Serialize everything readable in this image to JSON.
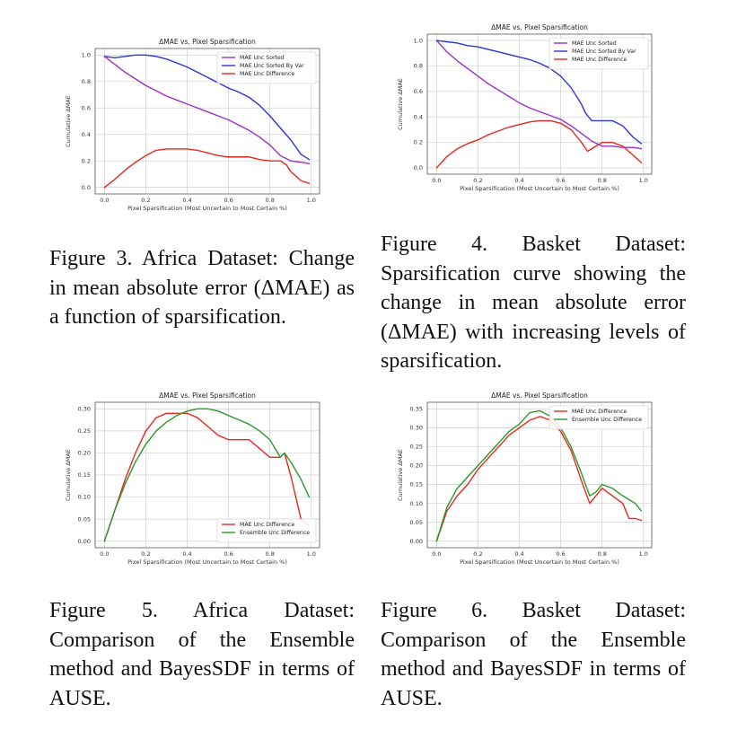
{
  "figures": [
    {
      "id": "fig3",
      "caption": "Figure 3. Africa Dataset: Change in mean absolute error (ΔMAE) as a function of sparsification.",
      "chart_data": {
        "type": "line",
        "title": "ΔMAE vs. Pixel Sparsification",
        "xlabel": "Pixel Sparsification (Most Uncertain to Most Certain %)",
        "ylabel": "Cumulative ΔMAE",
        "xlim": [
          0.0,
          1.0
        ],
        "ylim": [
          0.0,
          1.0
        ],
        "xticks": [
          "0.0",
          "0.2",
          "0.4",
          "0.6",
          "0.8",
          "1.0"
        ],
        "yticks": [
          "0.0",
          "0.2",
          "0.4",
          "0.6",
          "0.8",
          "1.0"
        ],
        "grid": true,
        "legend_position": "top-right",
        "series": [
          {
            "name": "MAE Unc Sorted",
            "color": "#9b30c8",
            "x": [
              0.0,
              0.05,
              0.1,
              0.15,
              0.2,
              0.25,
              0.3,
              0.35,
              0.4,
              0.45,
              0.5,
              0.55,
              0.6,
              0.65,
              0.7,
              0.75,
              0.8,
              0.85,
              0.9,
              0.95,
              0.99
            ],
            "y": [
              0.99,
              0.93,
              0.87,
              0.82,
              0.77,
              0.73,
              0.69,
              0.66,
              0.63,
              0.6,
              0.57,
              0.54,
              0.51,
              0.47,
              0.43,
              0.38,
              0.32,
              0.24,
              0.2,
              0.19,
              0.18
            ]
          },
          {
            "name": "MAE Unc Sorted By Var",
            "color": "#2b35e0",
            "x": [
              0.0,
              0.05,
              0.1,
              0.15,
              0.2,
              0.25,
              0.3,
              0.35,
              0.4,
              0.45,
              0.5,
              0.55,
              0.6,
              0.65,
              0.7,
              0.75,
              0.8,
              0.85,
              0.9,
              0.95,
              0.99
            ],
            "y": [
              0.99,
              0.98,
              0.99,
              1.0,
              1.0,
              0.99,
              0.97,
              0.94,
              0.91,
              0.87,
              0.83,
              0.79,
              0.75,
              0.72,
              0.68,
              0.62,
              0.54,
              0.45,
              0.36,
              0.25,
              0.21
            ]
          },
          {
            "name": "MAE Unc Difference",
            "color": "#e8281e",
            "x": [
              0.0,
              0.05,
              0.1,
              0.15,
              0.2,
              0.25,
              0.3,
              0.35,
              0.4,
              0.45,
              0.5,
              0.55,
              0.6,
              0.65,
              0.7,
              0.75,
              0.8,
              0.85,
              0.88,
              0.9,
              0.95,
              0.99
            ],
            "y": [
              0.0,
              0.06,
              0.13,
              0.19,
              0.24,
              0.28,
              0.29,
              0.29,
              0.29,
              0.28,
              0.26,
              0.24,
              0.23,
              0.23,
              0.23,
              0.21,
              0.2,
              0.2,
              0.17,
              0.12,
              0.05,
              0.03
            ]
          }
        ]
      }
    },
    {
      "id": "fig4",
      "caption": "Figure 4. Basket Dataset: Sparsification curve showing the change in mean absolute error (ΔMAE) with increasing levels of sparsification.",
      "chart_data": {
        "type": "line",
        "title": "ΔMAE vs. Pixel Sparsification",
        "xlabel": "Pixel Sparsification (Most Uncertain to Most Certain %)",
        "ylabel": "Cumulative ΔMAE",
        "xlim": [
          0.0,
          1.0
        ],
        "ylim": [
          0.0,
          1.0
        ],
        "xticks": [
          "0.0",
          "0.2",
          "0.4",
          "0.6",
          "0.8",
          "1.0"
        ],
        "yticks": [
          "0.0",
          "0.2",
          "0.4",
          "0.6",
          "0.8",
          "1.0"
        ],
        "grid": true,
        "legend_position": "top-right",
        "series": [
          {
            "name": "MAE Unc Sorted",
            "color": "#9b30c8",
            "x": [
              0.0,
              0.05,
              0.1,
              0.15,
              0.2,
              0.25,
              0.3,
              0.35,
              0.4,
              0.45,
              0.5,
              0.55,
              0.6,
              0.65,
              0.7,
              0.75,
              0.8,
              0.85,
              0.9,
              0.95,
              0.99
            ],
            "y": [
              1.0,
              0.91,
              0.84,
              0.78,
              0.72,
              0.66,
              0.61,
              0.56,
              0.51,
              0.47,
              0.44,
              0.41,
              0.38,
              0.33,
              0.27,
              0.21,
              0.17,
              0.17,
              0.16,
              0.16,
              0.15
            ]
          },
          {
            "name": "MAE Unc Sorted By Var",
            "color": "#2b35e0",
            "x": [
              0.0,
              0.05,
              0.1,
              0.15,
              0.2,
              0.25,
              0.3,
              0.35,
              0.4,
              0.45,
              0.5,
              0.55,
              0.6,
              0.65,
              0.7,
              0.72,
              0.75,
              0.8,
              0.85,
              0.9,
              0.95,
              0.99
            ],
            "y": [
              1.0,
              0.99,
              0.98,
              0.96,
              0.95,
              0.93,
              0.91,
              0.89,
              0.87,
              0.85,
              0.82,
              0.78,
              0.72,
              0.63,
              0.5,
              0.43,
              0.37,
              0.37,
              0.37,
              0.33,
              0.24,
              0.19
            ]
          },
          {
            "name": "MAE Unc Difference",
            "color": "#e8281e",
            "x": [
              0.0,
              0.05,
              0.1,
              0.15,
              0.2,
              0.25,
              0.3,
              0.35,
              0.4,
              0.45,
              0.5,
              0.55,
              0.6,
              0.65,
              0.7,
              0.73,
              0.75,
              0.8,
              0.85,
              0.9,
              0.95,
              0.99
            ],
            "y": [
              0.0,
              0.09,
              0.15,
              0.19,
              0.22,
              0.26,
              0.29,
              0.32,
              0.34,
              0.36,
              0.37,
              0.37,
              0.35,
              0.3,
              0.2,
              0.13,
              0.15,
              0.2,
              0.2,
              0.17,
              0.1,
              0.04
            ]
          }
        ]
      }
    },
    {
      "id": "fig5",
      "caption": "Figure 5. Africa Dataset: Comparison of the Ensemble method and BayesSDF in terms of AUSE.",
      "chart_data": {
        "type": "line",
        "title": "ΔMAE vs. Pixel Sparsification",
        "xlabel": "Pixel Sparsification (Most Uncertain to Most Certain %)",
        "ylabel": "Cumulative ΔMAE",
        "xlim": [
          0.0,
          1.0
        ],
        "ylim": [
          0.0,
          0.3
        ],
        "xticks": [
          "0.0",
          "0.2",
          "0.4",
          "0.6",
          "0.8",
          "1.0"
        ],
        "yticks": [
          "0.00",
          "0.05",
          "0.10",
          "0.15",
          "0.20",
          "0.25",
          "0.30"
        ],
        "grid": true,
        "legend_position": "bottom-right",
        "series": [
          {
            "name": "MAE Unc Difference",
            "color": "#e8281e",
            "x": [
              0.0,
              0.05,
              0.1,
              0.15,
              0.2,
              0.25,
              0.3,
              0.35,
              0.4,
              0.45,
              0.5,
              0.55,
              0.6,
              0.65,
              0.7,
              0.75,
              0.8,
              0.85,
              0.87,
              0.9,
              0.95,
              0.99
            ],
            "y": [
              0.0,
              0.07,
              0.14,
              0.2,
              0.25,
              0.28,
              0.29,
              0.29,
              0.29,
              0.28,
              0.26,
              0.24,
              0.23,
              0.23,
              0.23,
              0.21,
              0.19,
              0.19,
              0.2,
              0.15,
              0.05,
              0.035
            ]
          },
          {
            "name": "Ensemble Unc Difference",
            "color": "#2a9a2a",
            "x": [
              0.0,
              0.05,
              0.1,
              0.15,
              0.2,
              0.25,
              0.3,
              0.35,
              0.4,
              0.45,
              0.5,
              0.55,
              0.6,
              0.65,
              0.7,
              0.75,
              0.8,
              0.85,
              0.87,
              0.9,
              0.95,
              0.99
            ],
            "y": [
              0.0,
              0.07,
              0.13,
              0.18,
              0.22,
              0.25,
              0.27,
              0.285,
              0.295,
              0.3,
              0.3,
              0.295,
              0.285,
              0.275,
              0.265,
              0.25,
              0.23,
              0.19,
              0.2,
              0.18,
              0.14,
              0.1
            ]
          }
        ]
      }
    },
    {
      "id": "fig6",
      "caption": "Figure 6. Basket Dataset: Comparison of the Ensemble method and BayesSDF in terms of AUSE.",
      "chart_data": {
        "type": "line",
        "title": "ΔMAE vs. Pixel Sparsification",
        "xlabel": "Pixel Sparsification (Most Uncertain to Most Certain %)",
        "ylabel": "Cumulative ΔMAE",
        "xlim": [
          0.0,
          1.0
        ],
        "ylim": [
          0.0,
          0.35
        ],
        "xticks": [
          "0.0",
          "0.2",
          "0.4",
          "0.6",
          "0.8",
          "1.0"
        ],
        "yticks": [
          "0.00",
          "0.05",
          "0.10",
          "0.15",
          "0.20",
          "0.25",
          "0.30",
          "0.35"
        ],
        "grid": true,
        "legend_position": "top-right",
        "series": [
          {
            "name": "MAE Unc Difference",
            "color": "#e8281e",
            "x": [
              0.0,
              0.05,
              0.1,
              0.15,
              0.2,
              0.25,
              0.3,
              0.35,
              0.4,
              0.45,
              0.5,
              0.55,
              0.6,
              0.65,
              0.7,
              0.74,
              0.77,
              0.8,
              0.85,
              0.9,
              0.93,
              0.96,
              0.99
            ],
            "y": [
              0.0,
              0.08,
              0.12,
              0.15,
              0.19,
              0.22,
              0.25,
              0.28,
              0.3,
              0.32,
              0.33,
              0.32,
              0.29,
              0.24,
              0.16,
              0.1,
              0.12,
              0.14,
              0.12,
              0.1,
              0.06,
              0.06,
              0.055
            ]
          },
          {
            "name": "Ensemble Unc Difference",
            "color": "#2a9a2a",
            "x": [
              0.0,
              0.05,
              0.1,
              0.15,
              0.2,
              0.25,
              0.3,
              0.35,
              0.4,
              0.45,
              0.5,
              0.55,
              0.6,
              0.65,
              0.7,
              0.74,
              0.77,
              0.8,
              0.85,
              0.9,
              0.93,
              0.96,
              0.99
            ],
            "y": [
              0.0,
              0.09,
              0.14,
              0.17,
              0.2,
              0.23,
              0.26,
              0.29,
              0.31,
              0.34,
              0.345,
              0.33,
              0.3,
              0.25,
              0.18,
              0.12,
              0.13,
              0.15,
              0.14,
              0.12,
              0.11,
              0.1,
              0.08
            ]
          }
        ]
      }
    }
  ]
}
